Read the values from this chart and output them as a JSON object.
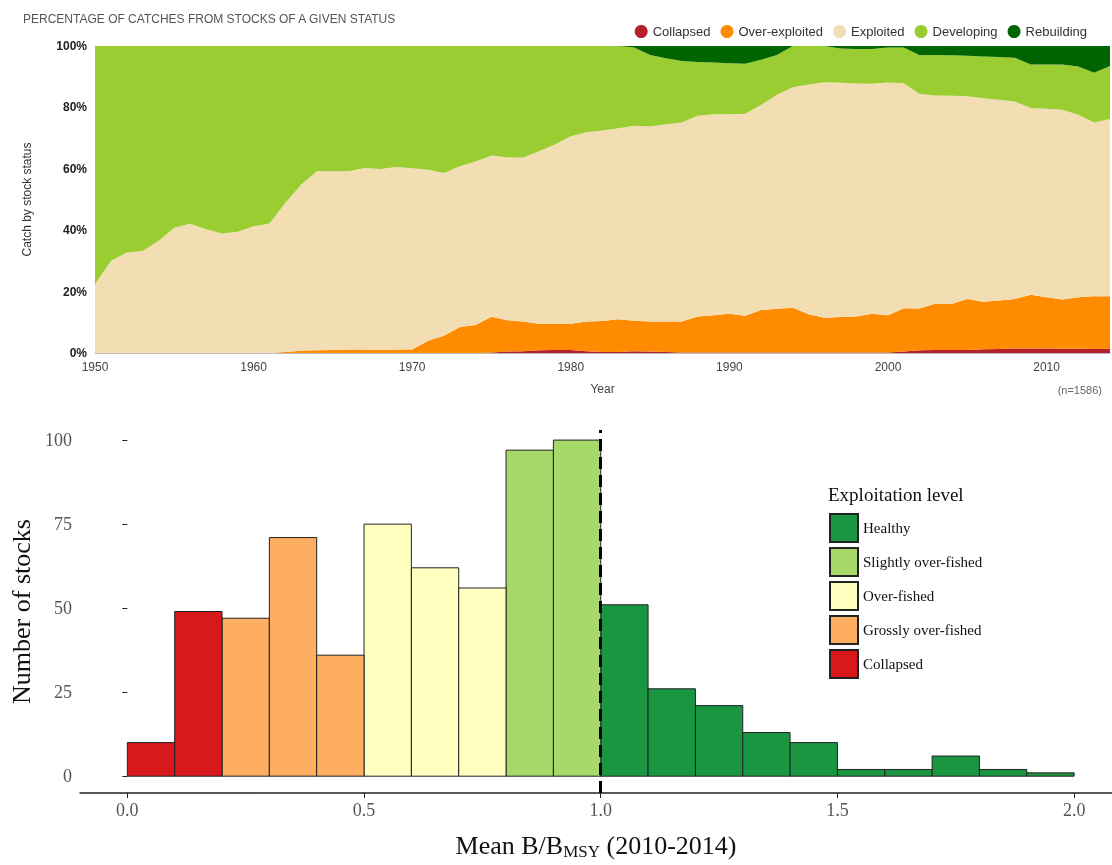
{
  "chart_data": [
    {
      "type": "area",
      "title": "PERCENTAGE OF CATCHES FROM STOCKS OF A GIVEN STATUS",
      "xlabel": "Year",
      "ylabel": "Catch by stock status",
      "stacked": true,
      "legend": "top right",
      "x": [
        1950,
        1951,
        1952,
        1953,
        1954,
        1955,
        1956,
        1957,
        1958,
        1959,
        1960,
        1961,
        1962,
        1963,
        1964,
        1965,
        1966,
        1967,
        1968,
        1969,
        1970,
        1971,
        1972,
        1973,
        1974,
        1975,
        1976,
        1977,
        1978,
        1979,
        1980,
        1981,
        1982,
        1983,
        1984,
        1985,
        1986,
        1987,
        1988,
        1989,
        1990,
        1991,
        1992,
        1993,
        1994,
        1995,
        1996,
        1997,
        1998,
        1999,
        2000,
        2001,
        2002,
        2003,
        2004,
        2005,
        2006,
        2007,
        2008,
        2009,
        2010,
        2011,
        2012,
        2013,
        2014
      ],
      "series": [
        {
          "name": "Collapsed",
          "color": "#b5202a",
          "values": [
            0,
            0,
            0,
            0,
            0,
            0,
            0,
            0,
            0,
            0,
            0,
            0,
            0,
            0,
            0,
            0,
            0,
            0,
            0,
            0,
            0,
            0,
            0,
            0,
            0,
            0.2,
            0.5,
            0.6,
            0.9,
            1.0,
            1.0,
            0.6,
            0.3,
            0.3,
            0.6,
            0.5,
            0.3,
            0.2,
            0.2,
            0.2,
            0.2,
            0.2,
            0.2,
            0.2,
            0.2,
            0.2,
            0.2,
            0.2,
            0.2,
            0.2,
            0.2,
            0.5,
            0.9,
            1.0,
            1.0,
            1.0,
            1.2,
            1.3,
            1.5,
            1.5,
            1.5,
            1.4,
            1.4,
            1.3,
            1.4
          ]
        },
        {
          "name": "Over-exploited",
          "color": "#ff8c00",
          "values": [
            0,
            0,
            0,
            0,
            0,
            0,
            0,
            0,
            0,
            0,
            0,
            0,
            0.3,
            0.7,
            0.9,
            1.0,
            1.1,
            1.1,
            1.0,
            1.1,
            1.1,
            4.0,
            5.6,
            8.5,
            9.1,
            11.6,
            10.2,
            9.7,
            8.6,
            8.5,
            8.5,
            9.7,
            10.1,
            10.7,
            9.9,
            9.8,
            10.0,
            10.1,
            11.7,
            12.1,
            12.6,
            11.9,
            13.8,
            14.2,
            14.5,
            12.4,
            11.3,
            11.5,
            11.7,
            12.6,
            12.1,
            14.1,
            13.6,
            15.1,
            15.0,
            16.6,
            15.5,
            15.8,
            16.1,
            17.5,
            16.7,
            16.0,
            16.8,
            17.2,
            17.1
          ]
        },
        {
          "name": "Exploited",
          "color": "#f3deb4",
          "values": [
            22.4,
            30.0,
            32.7,
            33.2,
            36.5,
            40.8,
            42.1,
            40.3,
            38.9,
            39.5,
            41.3,
            42.2,
            48.6,
            54.2,
            58.3,
            58.2,
            58.1,
            59.2,
            58.9,
            59.5,
            59.1,
            55.7,
            53.0,
            52.3,
            53.3,
            52.5,
            53.0,
            53.4,
            56.2,
            58.4,
            61.1,
            61.6,
            62.1,
            62.2,
            63.5,
            63.5,
            64.2,
            64.8,
            65.4,
            65.5,
            65.0,
            65.8,
            66.8,
            69.7,
            71.9,
            74.9,
            76.7,
            76.3,
            75.9,
            74.9,
            75.8,
            73.3,
            69.9,
            67.8,
            67.8,
            66.0,
            66.3,
            65.4,
            64.3,
            60.8,
            61.4,
            61.8,
            59.4,
            56.6,
            57.7
          ]
        },
        {
          "name": "Developing",
          "color": "#9acd32",
          "values": [
            77.6,
            70.0,
            67.3,
            66.8,
            63.5,
            59.2,
            57.9,
            59.7,
            61.1,
            60.5,
            58.7,
            57.8,
            51.1,
            45.1,
            40.8,
            40.8,
            40.8,
            39.7,
            40.1,
            39.4,
            39.8,
            40.3,
            41.4,
            39.2,
            37.6,
            35.7,
            36.3,
            36.3,
            34.3,
            32.1,
            29.4,
            28.1,
            27.5,
            26.8,
            25.5,
            23.3,
            21.5,
            20.0,
            17.5,
            16.8,
            16.6,
            16.3,
            14.7,
            13.0,
            13.4,
            12.5,
            11.8,
            11.2,
            11.2,
            11.3,
            11.4,
            11.6,
            12.6,
            13.2,
            13.2,
            13.2,
            13.6,
            13.9,
            14.3,
            14.2,
            14.4,
            14.8,
            15.7,
            16.2,
            17.3
          ]
        },
        {
          "name": "Rebuilding",
          "color": "#006400",
          "values": [
            0,
            0,
            0,
            0,
            0,
            0,
            0,
            0,
            0,
            0,
            0,
            0,
            0,
            0,
            0,
            0,
            0,
            0,
            0,
            0,
            0,
            0,
            0,
            0,
            0,
            0,
            0,
            0,
            0,
            0,
            0,
            0,
            0,
            0,
            0.5,
            2.9,
            4.0,
            4.9,
            5.2,
            5.4,
            5.6,
            5.8,
            4.5,
            2.9,
            0,
            0,
            0,
            0.8,
            1.0,
            1.0,
            0.5,
            0.5,
            3.0,
            2.9,
            3.0,
            3.2,
            3.4,
            3.6,
            3.8,
            6.0,
            6.0,
            6.0,
            6.7,
            8.7,
            6.5
          ]
        }
      ],
      "xlim": [
        1950,
        2014
      ],
      "xticks": [
        1950,
        1960,
        1970,
        1980,
        1990,
        2000,
        2010
      ],
      "ylim": [
        0,
        100
      ],
      "yticks": [
        {
          "value": 0,
          "label": "0%"
        },
        {
          "value": 20,
          "label": "20%"
        },
        {
          "value": 40,
          "label": "40%"
        },
        {
          "value": 60,
          "label": "60%"
        },
        {
          "value": 80,
          "label": "80%"
        },
        {
          "value": 100,
          "label": "100%"
        }
      ],
      "annotations": [
        "(n=1586)"
      ]
    },
    {
      "type": "histogram",
      "xlabel": "Mean B/B$_{MSY}$ (2010-2014)",
      "ylabel": "Number of stocks",
      "legend_title": "Exploitation level",
      "legend": "right",
      "bins": [
        0,
        0.1,
        0.2,
        0.3,
        0.4,
        0.5,
        0.6,
        0.7,
        0.8,
        0.9,
        1.0,
        1.1,
        1.2,
        1.3,
        1.4,
        1.5,
        1.6,
        1.7,
        1.8,
        1.9,
        2.0
      ],
      "series": [
        {
          "name": "Healthy",
          "color": "#1a9641",
          "values": [
            null,
            null,
            null,
            null,
            null,
            null,
            null,
            null,
            null,
            null,
            51,
            26,
            21,
            13,
            10,
            2,
            2,
            6,
            2,
            1
          ]
        },
        {
          "name": "Slightly over-fished",
          "color": "#a6d96a",
          "values": [
            null,
            null,
            null,
            null,
            null,
            null,
            null,
            null,
            97,
            100,
            null,
            null,
            null,
            null,
            null,
            null,
            null,
            null,
            null,
            null
          ]
        },
        {
          "name": "Over-fished",
          "color": "#ffffbf",
          "values": [
            null,
            null,
            null,
            null,
            null,
            75,
            62,
            56,
            null,
            null,
            null,
            null,
            null,
            null,
            null,
            null,
            null,
            null,
            null,
            null
          ]
        },
        {
          "name": "Grossly over-fished",
          "color": "#fdae61",
          "values": [
            null,
            null,
            47,
            71,
            36,
            null,
            null,
            null,
            null,
            null,
            null,
            null,
            null,
            null,
            null,
            null,
            null,
            null,
            null,
            null
          ]
        },
        {
          "name": "Collapsed",
          "color": "#d7191c",
          "values": [
            10,
            49,
            null,
            null,
            null,
            null,
            null,
            null,
            null,
            null,
            null,
            null,
            null,
            null,
            null,
            null,
            null,
            null,
            null,
            null
          ]
        }
      ],
      "xlim": [
        -0.1,
        2.08
      ],
      "xticks": [
        {
          "value": 0,
          "label": "0.0"
        },
        0.5,
        {
          "value": 1,
          "label": "1.0"
        },
        1.5,
        {
          "value": 2,
          "label": "2.0"
        }
      ],
      "ylim": [
        -5,
        103
      ],
      "yticks": [
        0,
        25,
        50,
        75,
        100
      ],
      "ref_lines": [
        {
          "axis": "x",
          "value": 1.0,
          "color": "#000000",
          "line_style": "dashed"
        }
      ]
    }
  ]
}
